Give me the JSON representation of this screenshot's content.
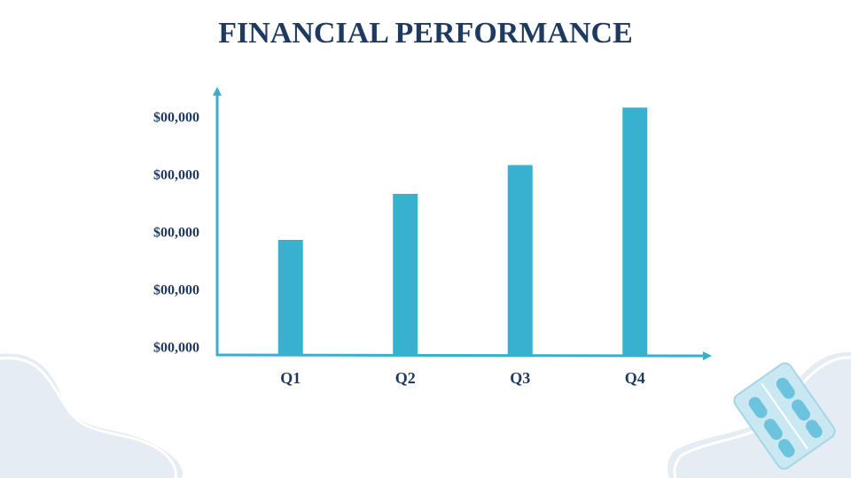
{
  "chart_data": {
    "type": "bar",
    "title": "FINANCIAL PERFORMANCE",
    "categories": [
      "Q1",
      "Q2",
      "Q3",
      "Q4"
    ],
    "values": [
      2.0,
      2.8,
      3.3,
      4.3
    ],
    "color": "#38b0cf",
    "ylim": [
      0,
      4.5
    ],
    "yticks": [
      {
        "value": 0,
        "label": "$00,000"
      },
      {
        "value": 1,
        "label": "$00,000"
      },
      {
        "value": 2,
        "label": "$00,000"
      },
      {
        "value": 3,
        "label": "$00,000"
      },
      {
        "value": 4,
        "label": "$00,000"
      }
    ],
    "grid": false
  }
}
